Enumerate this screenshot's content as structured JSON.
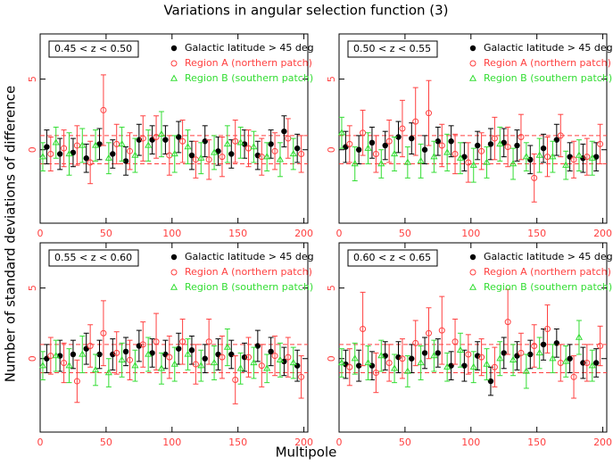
{
  "title": "Variations in angular selection function (3)",
  "xlabel": "Multipole",
  "ylabel": "Number of standard deviations of difference",
  "chart_data": [
    {
      "type": "scatter",
      "label": "0.45 < z < 0.50",
      "xlim": [
        0,
        203
      ],
      "ylim": [
        -5.2,
        8.2
      ],
      "xticks": [
        0,
        50,
        100,
        150,
        200
      ],
      "yticks": [
        0,
        5
      ],
      "reference_lines": [
        1,
        -1
      ],
      "reference_color": "#ff4040",
      "legend": "top-right",
      "series": [
        {
          "name": "Galactic latitude > 45 deg",
          "color": "#000000",
          "marker": "filled-circle",
          "x": [
            5,
            15,
            25,
            35,
            45,
            55,
            65,
            75,
            85,
            95,
            105,
            115,
            125,
            135,
            145,
            155,
            165,
            175,
            185,
            195
          ],
          "values": [
            0.2,
            -0.3,
            -0.2,
            -0.6,
            0.4,
            -0.3,
            -0.8,
            0.7,
            0.7,
            0.7,
            0.9,
            -0.4,
            0.6,
            -0.1,
            -0.3,
            0.4,
            -0.4,
            0.4,
            1.3,
            0.1
          ],
          "errors": [
            1.2,
            1.1,
            1.0,
            1.0,
            1.1,
            1.0,
            1.0,
            1.1,
            1.0,
            1.0,
            1.1,
            1.0,
            1.1,
            1.0,
            1.0,
            1.0,
            1.0,
            1.0,
            1.1,
            1.0
          ]
        },
        {
          "name": "Region A (northern patch)",
          "color": "#ff4040",
          "marker": "open-circle",
          "x": [
            8,
            18,
            28,
            38,
            48,
            58,
            68,
            78,
            88,
            98,
            108,
            118,
            128,
            138,
            148,
            158,
            168,
            178,
            188,
            198
          ],
          "values": [
            -0.3,
            0.1,
            0.3,
            -0.9,
            2.8,
            0.4,
            -0.1,
            0.8,
            0.9,
            -0.4,
            0.6,
            -0.7,
            -0.7,
            -0.5,
            0.6,
            0.1,
            -0.5,
            -0.1,
            0.8,
            -0.3
          ],
          "errors": [
            1.2,
            1.3,
            1.4,
            1.5,
            2.5,
            1.4,
            1.3,
            1.6,
            1.5,
            1.4,
            1.5,
            1.3,
            1.4,
            1.4,
            1.5,
            1.3,
            1.3,
            1.3,
            1.4,
            1.3
          ]
        },
        {
          "name": "Region B (southern patch)",
          "color": "#33dd33",
          "marker": "open-triangle",
          "x": [
            2,
            12,
            22,
            32,
            42,
            52,
            62,
            72,
            82,
            92,
            102,
            112,
            122,
            132,
            142,
            152,
            162,
            172,
            182,
            192
          ],
          "values": [
            -0.5,
            0.5,
            -0.3,
            0.3,
            0.3,
            -0.6,
            0.4,
            -0.4,
            0.3,
            1.1,
            -0.3,
            0.2,
            -0.6,
            -0.2,
            0.4,
            0.5,
            0.2,
            -0.5,
            -0.7,
            -0.3
          ],
          "errors": [
            1.0,
            1.1,
            1.5,
            1.2,
            1.1,
            1.1,
            1.2,
            1.2,
            1.1,
            1.6,
            1.3,
            1.2,
            1.1,
            1.2,
            1.3,
            1.1,
            1.1,
            1.0,
            1.2,
            1.1
          ]
        }
      ]
    },
    {
      "type": "scatter",
      "label": "0.50 < z < 0.55",
      "xlim": [
        0,
        203
      ],
      "ylim": [
        -5.2,
        8.2
      ],
      "xticks": [
        0,
        50,
        100,
        150,
        200
      ],
      "yticks": [
        0,
        5
      ],
      "reference_lines": [
        1,
        -1
      ],
      "reference_color": "#ff4040",
      "legend": "top-right",
      "series": [
        {
          "name": "Galactic latitude > 45 deg",
          "color": "#000000",
          "marker": "filled-circle",
          "x": [
            5,
            15,
            25,
            35,
            45,
            55,
            65,
            75,
            85,
            95,
            105,
            115,
            125,
            135,
            145,
            155,
            165,
            175,
            185,
            195
          ],
          "values": [
            0.2,
            0.0,
            0.5,
            0.3,
            0.9,
            0.8,
            0.0,
            0.6,
            0.6,
            -0.5,
            0.3,
            0.4,
            0.5,
            0.3,
            -0.7,
            0.1,
            0.7,
            -0.5,
            -0.6,
            -0.5
          ],
          "errors": [
            1.1,
            1.0,
            1.1,
            1.0,
            1.1,
            1.1,
            1.0,
            1.0,
            1.1,
            1.0,
            1.0,
            1.1,
            1.0,
            1.1,
            1.0,
            1.0,
            1.1,
            1.0,
            1.0,
            1.0
          ]
        },
        {
          "name": "Region A (northern patch)",
          "color": "#ff4040",
          "marker": "open-circle",
          "x": [
            8,
            18,
            28,
            38,
            48,
            58,
            68,
            78,
            88,
            98,
            108,
            118,
            128,
            138,
            148,
            158,
            168,
            178,
            188,
            198
          ],
          "values": [
            0.4,
            1.2,
            -0.3,
            0.6,
            1.5,
            2.0,
            2.6,
            0.3,
            -0.3,
            -0.9,
            -0.1,
            0.8,
            0.2,
            0.9,
            -2.0,
            -0.5,
            1.0,
            -0.7,
            -0.5,
            0.4
          ],
          "errors": [
            1.3,
            1.6,
            1.3,
            1.5,
            2.0,
            2.4,
            2.3,
            1.5,
            1.4,
            1.4,
            1.3,
            1.5,
            1.4,
            1.6,
            1.7,
            1.4,
            1.5,
            1.3,
            1.3,
            1.4
          ]
        },
        {
          "name": "Region B (southern patch)",
          "color": "#33dd33",
          "marker": "open-triangle",
          "x": [
            2,
            12,
            22,
            32,
            42,
            52,
            62,
            72,
            82,
            92,
            102,
            112,
            122,
            132,
            142,
            152,
            162,
            172,
            182,
            192
          ],
          "values": [
            1.2,
            -1.0,
            0.1,
            -1.0,
            -0.3,
            -0.9,
            -0.8,
            -0.5,
            -0.2,
            -0.6,
            -1.1,
            -0.9,
            0.4,
            -1.0,
            -0.5,
            -0.4,
            -0.5,
            -1.1,
            -0.4,
            -0.6
          ],
          "errors": [
            1.1,
            1.2,
            1.1,
            1.0,
            1.2,
            1.1,
            1.2,
            1.1,
            1.3,
            1.1,
            1.2,
            1.1,
            1.2,
            1.1,
            1.0,
            1.2,
            1.1,
            1.0,
            1.1,
            1.2
          ]
        }
      ]
    },
    {
      "type": "scatter",
      "label": "0.55 < z < 0.60",
      "xlim": [
        0,
        203
      ],
      "ylim": [
        -5.2,
        8.2
      ],
      "xticks": [
        0,
        50,
        100,
        150,
        200
      ],
      "yticks": [
        0,
        5
      ],
      "reference_lines": [
        1,
        -1
      ],
      "reference_color": "#ff4040",
      "legend": "top-right",
      "series": [
        {
          "name": "Galactic latitude > 45 deg",
          "color": "#000000",
          "marker": "filled-circle",
          "x": [
            5,
            15,
            25,
            35,
            45,
            55,
            65,
            75,
            85,
            95,
            105,
            115,
            125,
            135,
            145,
            155,
            165,
            175,
            185,
            195
          ],
          "values": [
            0.0,
            0.2,
            0.3,
            0.7,
            0.3,
            0.3,
            0.5,
            0.9,
            0.4,
            0.3,
            0.7,
            0.6,
            0.0,
            0.3,
            0.3,
            0.1,
            0.9,
            0.5,
            -0.2,
            -0.5
          ],
          "errors": [
            1.0,
            1.1,
            1.0,
            1.1,
            1.0,
            1.1,
            1.0,
            1.1,
            1.0,
            1.0,
            1.1,
            1.0,
            1.0,
            1.1,
            1.0,
            1.0,
            1.1,
            1.0,
            1.0,
            1.1
          ]
        },
        {
          "name": "Region A (northern patch)",
          "color": "#ff4040",
          "marker": "open-circle",
          "x": [
            8,
            18,
            28,
            38,
            48,
            58,
            68,
            78,
            88,
            98,
            108,
            118,
            128,
            138,
            148,
            158,
            168,
            178,
            188,
            198
          ],
          "values": [
            0.2,
            -0.3,
            -1.6,
            0.9,
            1.8,
            0.4,
            -0.1,
            1.0,
            1.2,
            0.1,
            1.2,
            -0.4,
            1.2,
            0.1,
            -1.5,
            0.1,
            -0.5,
            0.2,
            0.1,
            -1.3
          ],
          "errors": [
            1.3,
            1.4,
            1.5,
            1.5,
            2.3,
            1.5,
            1.4,
            1.6,
            2.0,
            1.5,
            1.6,
            1.4,
            1.6,
            1.5,
            1.7,
            1.4,
            1.5,
            1.4,
            1.4,
            1.5
          ]
        },
        {
          "name": "Region B (southern patch)",
          "color": "#33dd33",
          "marker": "open-triangle",
          "x": [
            2,
            12,
            22,
            32,
            42,
            52,
            62,
            72,
            82,
            92,
            102,
            112,
            122,
            132,
            142,
            152,
            162,
            172,
            182,
            192
          ],
          "values": [
            -0.5,
            0.2,
            -0.5,
            0.3,
            -0.8,
            -1.0,
            -0.1,
            -0.5,
            0.3,
            -0.7,
            -0.4,
            0.3,
            -0.5,
            -0.3,
            0.8,
            -0.7,
            -0.3,
            -0.7,
            -0.1,
            -0.3
          ],
          "errors": [
            1.0,
            1.1,
            1.2,
            1.3,
            1.1,
            1.0,
            1.2,
            1.1,
            1.2,
            1.1,
            1.2,
            1.1,
            1.1,
            1.2,
            1.3,
            1.1,
            1.1,
            1.0,
            1.2,
            1.1
          ]
        }
      ]
    },
    {
      "type": "scatter",
      "label": "0.60 < z < 0.65",
      "xlim": [
        0,
        203
      ],
      "ylim": [
        -5.2,
        8.2
      ],
      "xticks": [
        0,
        50,
        100,
        150,
        200
      ],
      "yticks": [
        0,
        5
      ],
      "reference_lines": [
        1,
        -1
      ],
      "reference_color": "#ff4040",
      "legend": "top-right",
      "series": [
        {
          "name": "Galactic latitude > 45 deg",
          "color": "#000000",
          "marker": "filled-circle",
          "x": [
            5,
            15,
            25,
            35,
            45,
            55,
            65,
            75,
            85,
            95,
            105,
            115,
            125,
            135,
            145,
            155,
            165,
            175,
            185,
            195
          ],
          "values": [
            -0.4,
            -0.5,
            -0.5,
            0.2,
            0.1,
            0.0,
            0.4,
            0.4,
            -0.5,
            -0.5,
            0.2,
            -1.6,
            0.4,
            0.2,
            0.3,
            1.0,
            1.1,
            0.0,
            -0.3,
            -0.3
          ],
          "errors": [
            1.0,
            1.1,
            1.0,
            1.0,
            1.1,
            1.0,
            1.1,
            1.0,
            1.0,
            1.1,
            1.0,
            1.0,
            1.1,
            1.0,
            1.0,
            1.1,
            1.0,
            1.0,
            1.1,
            1.0
          ]
        },
        {
          "name": "Region A (northern patch)",
          "color": "#ff4040",
          "marker": "open-circle",
          "x": [
            8,
            18,
            28,
            38,
            48,
            58,
            68,
            78,
            88,
            98,
            108,
            118,
            128,
            138,
            148,
            158,
            168,
            178,
            188,
            198
          ],
          "values": [
            -0.6,
            2.1,
            -1.0,
            -0.3,
            0.0,
            1.1,
            1.8,
            2.0,
            1.2,
            0.3,
            0.1,
            -0.6,
            2.6,
            0.4,
            0.9,
            2.1,
            -0.3,
            -1.3,
            -0.3,
            0.9
          ],
          "errors": [
            1.3,
            2.6,
            1.4,
            1.3,
            1.4,
            1.6,
            1.8,
            2.4,
            1.6,
            1.4,
            1.3,
            1.4,
            2.3,
            1.4,
            1.5,
            1.7,
            1.3,
            1.5,
            1.3,
            1.4
          ]
        },
        {
          "name": "Region B (southern patch)",
          "color": "#33dd33",
          "marker": "open-triangle",
          "x": [
            2,
            12,
            22,
            32,
            42,
            52,
            62,
            72,
            82,
            92,
            102,
            112,
            122,
            132,
            142,
            152,
            162,
            172,
            182,
            192
          ],
          "values": [
            -0.3,
            0.0,
            -0.3,
            0.2,
            -0.7,
            -0.9,
            -0.3,
            0.2,
            -0.6,
            0.6,
            -0.6,
            -0.4,
            0.0,
            -0.1,
            -0.9,
            0.4,
            0.0,
            -0.2,
            1.5,
            -0.5
          ],
          "errors": [
            1.0,
            1.1,
            1.2,
            1.1,
            1.0,
            1.1,
            1.2,
            1.1,
            1.0,
            1.2,
            1.1,
            1.1,
            1.2,
            1.1,
            1.2,
            1.1,
            1.0,
            1.1,
            1.2,
            1.1
          ]
        }
      ]
    }
  ]
}
